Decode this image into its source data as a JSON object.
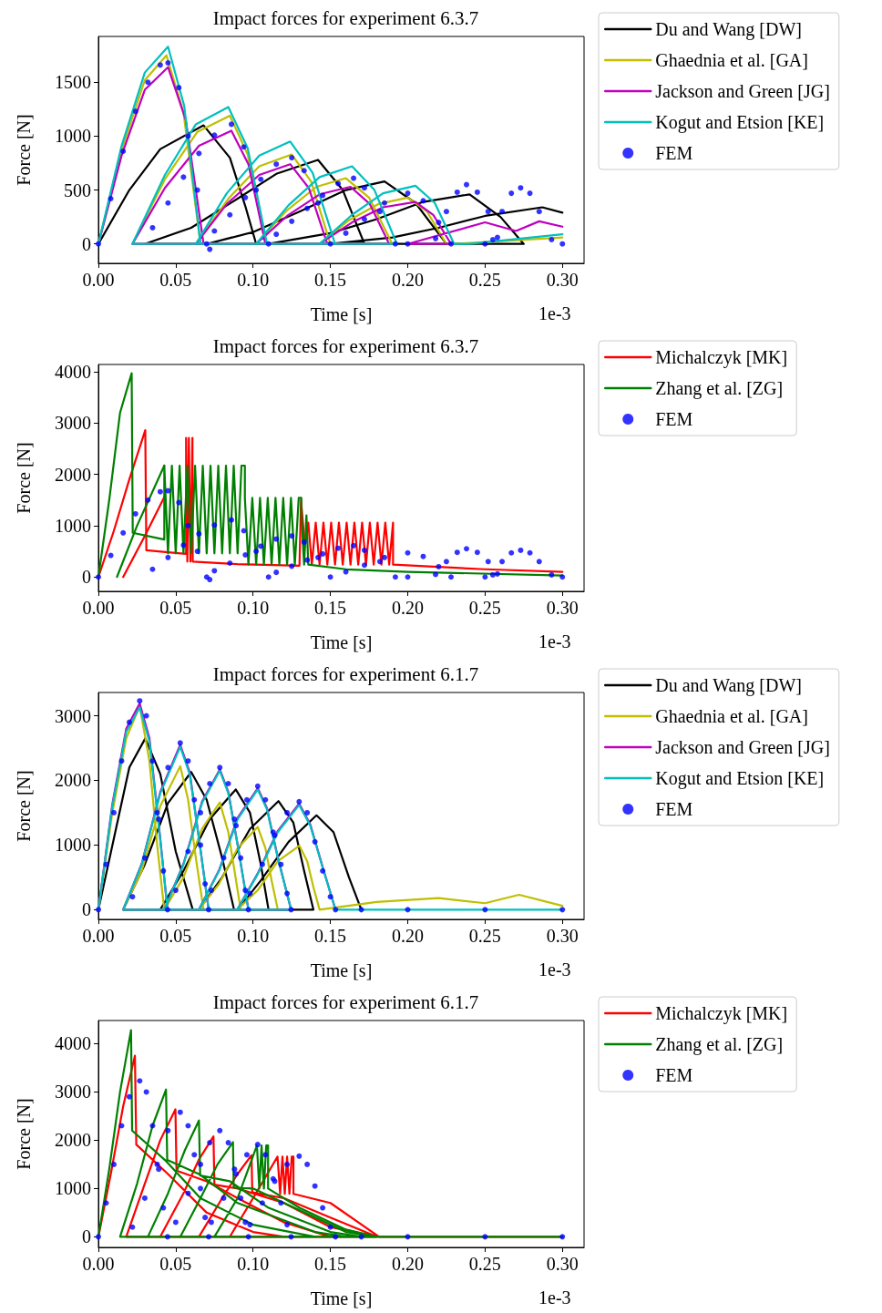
{
  "chart_data": [
    {
      "type": "line",
      "title": "Impact forces for experiment 6.3.7",
      "xlabel": "Time [s]",
      "ylabel": "Force [N]",
      "annotations": [
        "1e-3"
      ],
      "legend": "right",
      "xlim": [
        0,
        0.314
      ],
      "ylim": [
        -180,
        1925
      ],
      "xticks": [
        {
          "value": 0,
          "label": "0.00"
        },
        {
          "value": 0.05,
          "label": "0.05"
        },
        {
          "value": 0.1,
          "label": "0.10"
        },
        {
          "value": 0.15,
          "label": "0.15"
        },
        {
          "value": 0.2,
          "label": "0.20"
        },
        {
          "value": 0.25,
          "label": "0.25"
        },
        {
          "value": 0.3,
          "label": "0.30"
        }
      ],
      "yticks": [
        0,
        500,
        1000,
        1500
      ],
      "series": [
        {
          "name": "Du and Wang [DW]",
          "color": "#000000",
          "x": [
            0,
            0.02,
            0.04,
            0.068,
            0.085,
            0.095,
            0.102,
            0.03,
            0.06,
            0.09,
            0.115,
            0.142,
            0.158,
            0.172,
            0.07,
            0.1,
            0.13,
            0.16,
            0.185,
            0.205,
            0.225,
            0.11,
            0.15,
            0.18,
            0.21,
            0.24,
            0.26,
            0.275,
            0.15,
            0.19,
            0.22,
            0.25,
            0.287,
            0.3
          ],
          "values": [
            0,
            500,
            880,
            1100,
            800,
            350,
            0,
            0,
            150,
            420,
            650,
            780,
            500,
            0,
            0,
            110,
            300,
            500,
            580,
            380,
            0,
            0,
            100,
            230,
            390,
            460,
            250,
            0,
            0,
            60,
            150,
            260,
            340,
            290
          ]
        },
        {
          "name": "Ghaednia et al. [GA]",
          "color": "#bfbf00",
          "x": [
            0,
            0.015,
            0.03,
            0.044,
            0.055,
            0.066,
            0.022,
            0.043,
            0.064,
            0.085,
            0.0965,
            0.108,
            0.063,
            0.084,
            0.104,
            0.125,
            0.1375,
            0.15,
            0.102,
            0.121,
            0.141,
            0.16,
            0.175,
            0.19,
            0.143,
            0.162,
            0.181,
            0.2,
            0.2125,
            0.225,
            0.23,
            0.3
          ],
          "values": [
            0,
            870,
            1520,
            1750,
            1220,
            0,
            0,
            600,
            1040,
            1190,
            830,
            0,
            0,
            420,
            720,
            830,
            580,
            0,
            0,
            300,
            530,
            610,
            430,
            0,
            0,
            220,
            370,
            430,
            300,
            0,
            0,
            60
          ]
        },
        {
          "name": "Jackson and Green [JG]",
          "color": "#bf00bf",
          "x": [
            0,
            0.015,
            0.03,
            0.045,
            0.0565,
            0.068,
            0.022,
            0.043,
            0.065,
            0.086,
            0.097,
            0.108,
            0.063,
            0.083,
            0.104,
            0.124,
            0.136,
            0.148,
            0.102,
            0.122,
            0.143,
            0.163,
            0.1755,
            0.188,
            0.143,
            0.164,
            0.184,
            0.205,
            0.2165,
            0.228,
            0.2,
            0.25,
            0.27,
            0.285,
            0.3
          ],
          "values": [
            0,
            820,
            1430,
            1640,
            1150,
            0,
            0,
            520,
            910,
            1050,
            740,
            0,
            0,
            370,
            640,
            740,
            520,
            0,
            0,
            260,
            460,
            530,
            370,
            0,
            0,
            200,
            340,
            390,
            270,
            0,
            0,
            200,
            120,
            210,
            160
          ]
        },
        {
          "name": "Kogut and Etsion [KE]",
          "color": "#00bfbf",
          "x": [
            0,
            0.015,
            0.03,
            0.045,
            0.0555,
            0.066,
            0.022,
            0.043,
            0.063,
            0.084,
            0.0965,
            0.109,
            0.063,
            0.083,
            0.104,
            0.124,
            0.1385,
            0.153,
            0.102,
            0.123,
            0.143,
            0.164,
            0.1785,
            0.193,
            0.143,
            0.164,
            0.184,
            0.205,
            0.2175,
            0.23,
            0.24,
            0.3
          ],
          "values": [
            0,
            910,
            1590,
            1830,
            1280,
            0,
            0,
            640,
            1110,
            1270,
            890,
            0,
            0,
            470,
            820,
            950,
            660,
            0,
            0,
            360,
            620,
            720,
            500,
            0,
            0,
            270,
            470,
            540,
            380,
            0,
            0,
            90
          ]
        },
        {
          "name": "FEM",
          "color": "#0000ff",
          "type": "scatter",
          "marker": "circle",
          "x": [
            0,
            0.008,
            0.016,
            0.024,
            0.032,
            0.04,
            0.045,
            0.052,
            0.058,
            0.064,
            0.07,
            0.072,
            0.035,
            0.045,
            0.055,
            0.065,
            0.075,
            0.086,
            0.094,
            0.102,
            0.11,
            0.075,
            0.085,
            0.095,
            0.105,
            0.115,
            0.125,
            0.133,
            0.142,
            0.15,
            0.115,
            0.125,
            0.135,
            0.145,
            0.155,
            0.165,
            0.172,
            0.182,
            0.192,
            0.16,
            0.172,
            0.185,
            0.2,
            0.21,
            0.22,
            0.228,
            0.218,
            0.225,
            0.232,
            0.238,
            0.245,
            0.252,
            0.258,
            0.255,
            0.261,
            0.267,
            0.273,
            0.279,
            0.285,
            0.293,
            0.2,
            0.25,
            0.3
          ],
          "values": [
            0,
            420,
            860,
            1230,
            1500,
            1660,
            1680,
            1450,
            1000,
            500,
            0,
            -50,
            150,
            380,
            620,
            840,
            1010,
            1110,
            900,
            500,
            0,
            120,
            270,
            430,
            600,
            740,
            800,
            680,
            380,
            0,
            90,
            210,
            330,
            450,
            560,
            610,
            520,
            300,
            0,
            100,
            230,
            380,
            470,
            400,
            200,
            0,
            50,
            300,
            480,
            550,
            480,
            300,
            60,
            40,
            300,
            470,
            520,
            470,
            300,
            40,
            0,
            0,
            0
          ]
        }
      ]
    },
    {
      "type": "line",
      "title": "Impact forces for experiment 6.3.7",
      "xlabel": "Time [s]",
      "ylabel": "Force [N]",
      "annotations": [
        "1e-3"
      ],
      "legend": "right",
      "xlim": [
        0,
        0.314
      ],
      "ylim": [
        -280,
        4140
      ],
      "xticks": [
        {
          "value": 0,
          "label": "0.00"
        },
        {
          "value": 0.05,
          "label": "0.05"
        },
        {
          "value": 0.1,
          "label": "0.10"
        },
        {
          "value": 0.15,
          "label": "0.15"
        },
        {
          "value": 0.2,
          "label": "0.20"
        },
        {
          "value": 0.25,
          "label": "0.25"
        },
        {
          "value": 0.3,
          "label": "0.30"
        }
      ],
      "yticks": [
        0,
        1000,
        2000,
        3000,
        4000
      ],
      "series": [
        {
          "name": "Michalczyk [MK]",
          "color": "#ff0000",
          "x": [
            0,
            0.01,
            0.02,
            0.0303,
            0.031,
            0.045,
            0.0567,
            0.0567,
            0.0575,
            0.0585,
            0.0595,
            0.0608,
            0.061,
            0.09,
            0.13,
            0.131,
            0.1335,
            0.1357,
            0.138,
            0.1405,
            0.143,
            0.1455,
            0.148,
            0.1505,
            0.153,
            0.1555,
            0.158,
            0.1605,
            0.163,
            0.1655,
            0.168,
            0.1705,
            0.173,
            0.1755,
            0.178,
            0.1805,
            0.183,
            0.1855,
            0.188,
            0.1905,
            0.1905,
            0.25,
            0.3
          ],
          "values": [
            0,
            900,
            1900,
            2860,
            520,
            480,
            450,
            2710,
            300,
            2710,
            300,
            2710,
            300,
            250,
            220,
            1500,
            600,
            1060,
            240,
            1060,
            240,
            1060,
            240,
            1060,
            240,
            1060,
            240,
            1060,
            240,
            1060,
            240,
            1060,
            240,
            1060,
            240,
            1060,
            240,
            1060,
            240,
            1060,
            240,
            150,
            100
          ]
        },
        {
          "color": "#ff0000",
          "x": [
            0.016,
            0.03,
            0.043
          ],
          "values": [
            0,
            800,
            1580
          ]
        },
        {
          "name": "Zhang et al. [ZG]",
          "color": "#008000",
          "x": [
            0,
            0.007,
            0.014,
            0.0215,
            0.0222,
            0.0426,
            0.0426,
            0.045,
            0.0475,
            0.05,
            0.0525,
            0.055,
            0.0575,
            0.06,
            0.0625,
            0.065,
            0.0675,
            0.07,
            0.0725,
            0.075,
            0.0775,
            0.08,
            0.0825,
            0.085,
            0.0875,
            0.09,
            0.0925,
            0.0947,
            0.0947,
            0.097,
            0.0995,
            0.102,
            0.1045,
            0.107,
            0.1095,
            0.112,
            0.1145,
            0.117,
            0.1195,
            0.122,
            0.1245,
            0.127,
            0.1295,
            0.1312,
            0.1312,
            0.133,
            0.1345,
            0.1357,
            0.16,
            0.2,
            0.3
          ],
          "values": [
            0,
            1500,
            3200,
            3970,
            860,
            730,
            2170,
            460,
            2170,
            460,
            2170,
            460,
            2170,
            460,
            2170,
            460,
            2170,
            460,
            2170,
            460,
            2170,
            460,
            2170,
            460,
            2170,
            460,
            2170,
            2170,
            1540,
            240,
            1540,
            240,
            1540,
            240,
            1540,
            240,
            1540,
            240,
            1540,
            240,
            1540,
            240,
            1540,
            1540,
            1200,
            240,
            1200,
            240,
            150,
            100,
            30
          ]
        },
        {
          "color": "#008000",
          "x": [
            0.012,
            0.025,
            0.0426
          ],
          "values": [
            0,
            1000,
            2170
          ]
        },
        {
          "name": "FEM",
          "color": "#0000ff",
          "type": "scatter",
          "marker": "circle",
          "x": [
            0,
            0.008,
            0.016,
            0.024,
            0.032,
            0.04,
            0.045,
            0.052,
            0.058,
            0.064,
            0.07,
            0.072,
            0.035,
            0.045,
            0.055,
            0.065,
            0.075,
            0.086,
            0.094,
            0.102,
            0.11,
            0.075,
            0.085,
            0.095,
            0.105,
            0.115,
            0.125,
            0.133,
            0.142,
            0.15,
            0.115,
            0.125,
            0.135,
            0.145,
            0.155,
            0.165,
            0.172,
            0.182,
            0.192,
            0.16,
            0.172,
            0.185,
            0.2,
            0.21,
            0.22,
            0.228,
            0.218,
            0.225,
            0.232,
            0.238,
            0.245,
            0.252,
            0.258,
            0.255,
            0.261,
            0.267,
            0.273,
            0.279,
            0.285,
            0.293,
            0.2,
            0.25,
            0.3
          ],
          "values": [
            0,
            420,
            860,
            1230,
            1500,
            1660,
            1680,
            1450,
            1000,
            500,
            0,
            -50,
            150,
            380,
            620,
            840,
            1010,
            1110,
            900,
            500,
            0,
            120,
            270,
            430,
            600,
            740,
            800,
            680,
            380,
            0,
            90,
            210,
            330,
            450,
            560,
            610,
            520,
            300,
            0,
            100,
            230,
            380,
            470,
            400,
            200,
            0,
            50,
            300,
            480,
            550,
            480,
            300,
            60,
            40,
            300,
            470,
            520,
            470,
            300,
            40,
            0,
            0,
            0
          ]
        }
      ]
    },
    {
      "type": "line",
      "title": "Impact forces for experiment 6.1.7",
      "xlabel": "Time [s]",
      "ylabel": "Force [N]",
      "annotations": [
        "1e-3"
      ],
      "legend": "right",
      "xlim": [
        0,
        0.314
      ],
      "ylim": [
        -150,
        3360
      ],
      "xticks": [
        {
          "value": 0,
          "label": "0.00"
        },
        {
          "value": 0.05,
          "label": "0.05"
        },
        {
          "value": 0.1,
          "label": "0.10"
        },
        {
          "value": 0.15,
          "label": "0.15"
        },
        {
          "value": 0.2,
          "label": "0.20"
        },
        {
          "value": 0.25,
          "label": "0.25"
        },
        {
          "value": 0.3,
          "label": "0.30"
        }
      ],
      "yticks": [
        0,
        1000,
        2000,
        3000
      ],
      "series": [
        {
          "name": "Du and Wang [DW]",
          "color": "#000000",
          "x": [
            0,
            0.01,
            0.02,
            0.0303,
            0.04,
            0.05,
            0.061,
            0.016,
            0.03,
            0.045,
            0.06,
            0.07,
            0.08,
            0.0877,
            0.04,
            0.055,
            0.072,
            0.0888,
            0.098,
            0.105,
            0.11,
            0.065,
            0.08,
            0.098,
            0.1164,
            0.126,
            0.133,
            0.139,
            0.09,
            0.105,
            0.123,
            0.141,
            0.152,
            0.162,
            0.17
          ],
          "values": [
            0,
            1100,
            2200,
            2650,
            2100,
            900,
            0,
            0,
            700,
            1650,
            2130,
            1700,
            800,
            0,
            0,
            600,
            1400,
            1860,
            1500,
            700,
            0,
            0,
            500,
            1250,
            1680,
            1350,
            600,
            0,
            0,
            450,
            1050,
            1460,
            1200,
            500,
            0
          ]
        },
        {
          "name": "Ghaednia et al. [GA]",
          "color": "#bfbf00",
          "x": [
            0,
            0.009,
            0.018,
            0.0267,
            0.033,
            0.038,
            0.0426,
            0.016,
            0.028,
            0.04,
            0.0529,
            0.058,
            0.063,
            0.068,
            0.0426,
            0.055,
            0.067,
            0.0785,
            0.084,
            0.088,
            0.092,
            0.065,
            0.078,
            0.09,
            0.103,
            0.108,
            0.112,
            0.116,
            0.0898,
            0.103,
            0.116,
            0.13,
            0.135,
            0.139,
            0.143,
            0.18,
            0.22,
            0.25,
            0.272,
            0.3
          ],
          "values": [
            0,
            1500,
            2650,
            3150,
            2300,
            1000,
            0,
            0,
            600,
            1600,
            2220,
            1700,
            800,
            0,
            0,
            500,
            1250,
            1660,
            1200,
            600,
            0,
            0,
            400,
            950,
            1280,
            950,
            450,
            0,
            0,
            300,
            750,
            990,
            750,
            350,
            0,
            120,
            180,
            100,
            230,
            60
          ]
        },
        {
          "name": "Jackson and Green [JG]",
          "color": "#bf00bf",
          "x": [
            0,
            0.009,
            0.018,
            0.0267,
            0.033,
            0.039,
            0.0447,
            0.016,
            0.028,
            0.04,
            0.0529,
            0.059,
            0.065,
            0.0713,
            0.0426,
            0.055,
            0.067,
            0.0785,
            0.084,
            0.09,
            0.097,
            0.065,
            0.078,
            0.09,
            0.103,
            0.109,
            0.116,
            0.1246,
            0.0898,
            0.103,
            0.116,
            0.1298,
            0.137,
            0.145,
            0.1533
          ],
          "values": [
            0,
            1630,
            2800,
            3190,
            2650,
            1330,
            0,
            0,
            710,
            1820,
            2550,
            2130,
            1110,
            0,
            0,
            710,
            1670,
            2170,
            1820,
            1010,
            0,
            0,
            610,
            1420,
            1880,
            1570,
            810,
            0,
            0,
            560,
            1220,
            1640,
            1320,
            660,
            0
          ]
        },
        {
          "name": "Kogut and Etsion [KE]",
          "color": "#00bfbf",
          "x": [
            0,
            0.009,
            0.018,
            0.0267,
            0.033,
            0.039,
            0.0447,
            0.016,
            0.028,
            0.04,
            0.0529,
            0.059,
            0.065,
            0.0713,
            0.0426,
            0.055,
            0.067,
            0.0785,
            0.084,
            0.09,
            0.097,
            0.065,
            0.078,
            0.09,
            0.103,
            0.109,
            0.116,
            0.1246,
            0.0898,
            0.103,
            0.116,
            0.1298,
            0.137,
            0.145,
            0.1533,
            0.3
          ],
          "values": [
            0,
            1600,
            2750,
            3130,
            2600,
            1300,
            0,
            0,
            700,
            1800,
            2520,
            2100,
            1100,
            0,
            0,
            700,
            1650,
            2150,
            1800,
            1000,
            0,
            0,
            600,
            1400,
            1860,
            1550,
            800,
            0,
            0,
            550,
            1200,
            1620,
            1300,
            650,
            0,
            0
          ]
        },
        {
          "name": "FEM",
          "color": "#0000ff",
          "type": "scatter",
          "marker": "circle",
          "x": [
            0,
            0.005,
            0.01,
            0.015,
            0.02,
            0.0267,
            0.031,
            0.035,
            0.039,
            0.042,
            0.0447,
            0.022,
            0.03,
            0.038,
            0.045,
            0.0529,
            0.058,
            0.062,
            0.066,
            0.069,
            0.0713,
            0.05,
            0.058,
            0.066,
            0.072,
            0.0785,
            0.084,
            0.088,
            0.092,
            0.095,
            0.097,
            0.073,
            0.081,
            0.089,
            0.096,
            0.103,
            0.108,
            0.113,
            0.118,
            0.122,
            0.1246,
            0.098,
            0.106,
            0.114,
            0.122,
            0.1298,
            0.135,
            0.14,
            0.145,
            0.15,
            0.1533,
            0.17,
            0.2,
            0.25,
            0.3
          ],
          "values": [
            0,
            700,
            1500,
            2300,
            2900,
            3230,
            3000,
            2300,
            1400,
            600,
            0,
            200,
            800,
            1500,
            2200,
            2580,
            2300,
            1700,
            1000,
            400,
            0,
            300,
            900,
            1500,
            1950,
            2200,
            1950,
            1400,
            800,
            300,
            0,
            300,
            800,
            1300,
            1700,
            1910,
            1700,
            1200,
            700,
            250,
            0,
            250,
            700,
            1150,
            1500,
            1670,
            1500,
            1050,
            600,
            200,
            0,
            0,
            0,
            0,
            0
          ]
        }
      ]
    },
    {
      "type": "line",
      "title": "Impact forces for experiment 6.1.7",
      "xlabel": "Time [s]",
      "ylabel": "Force [N]",
      "annotations": [
        "1e-3"
      ],
      "legend": "right",
      "xlim": [
        0,
        0.314
      ],
      "ylim": [
        -220,
        4480
      ],
      "xticks": [
        {
          "value": 0,
          "label": "0.00"
        },
        {
          "value": 0.05,
          "label": "0.05"
        },
        {
          "value": 0.1,
          "label": "0.10"
        },
        {
          "value": 0.15,
          "label": "0.15"
        },
        {
          "value": 0.2,
          "label": "0.20"
        },
        {
          "value": 0.25,
          "label": "0.25"
        },
        {
          "value": 0.3,
          "label": "0.30"
        }
      ],
      "yticks": [
        0,
        1000,
        2000,
        3000,
        4000
      ],
      "series": [
        {
          "name": "Michalczyk [MK]",
          "color": "#ff0000",
          "x": [
            0,
            0.008,
            0.016,
            0.0236,
            0.0245,
            0.045,
            0.07,
            0.1,
            0.12,
            0.018,
            0.03,
            0.04,
            0.0498,
            0.0505,
            0.07,
            0.09,
            0.12,
            0.15,
            0.04,
            0.055,
            0.065,
            0.0744,
            0.075,
            0.09,
            0.12,
            0.15,
            0.18,
            0.065,
            0.08,
            0.09,
            0.099,
            0.0995,
            0.12,
            0.15,
            0.18,
            0.085,
            0.1,
            0.1158,
            0.1175,
            0.119,
            0.1205,
            0.122,
            0.1235,
            0.125,
            0.1261,
            0.1261,
            0.15,
            0.1815,
            0.3
          ],
          "values": [
            0,
            1300,
            2700,
            3750,
            1910,
            1300,
            500,
            100,
            0,
            0,
            1100,
            2000,
            2640,
            1370,
            1150,
            800,
            300,
            0,
            0,
            900,
            1600,
            2080,
            1080,
            1000,
            700,
            200,
            0,
            0,
            800,
            1300,
            1690,
            920,
            800,
            400,
            0,
            0,
            800,
            1660,
            890,
            1660,
            890,
            1660,
            890,
            1660,
            1660,
            890,
            700,
            0,
            0
          ]
        },
        {
          "name": "Zhang et al. [ZG]",
          "color": "#008000",
          "x": [
            0,
            0.007,
            0.014,
            0.0211,
            0.0218,
            0.043,
            0.066,
            0.1,
            0.14,
            0.014,
            0.025,
            0.035,
            0.0437,
            0.0445,
            0.065,
            0.09,
            0.14,
            0.16,
            0.032,
            0.045,
            0.056,
            0.065,
            0.0658,
            0.085,
            0.11,
            0.15,
            0.17,
            0.053,
            0.066,
            0.077,
            0.087,
            0.0875,
            0.1,
            0.12,
            0.16,
            0.18,
            0.075,
            0.09,
            0.1025,
            0.104,
            0.1055,
            0.107,
            0.1085,
            0.1097,
            0.1097,
            0.13,
            0.16,
            0.18,
            0.3
          ],
          "values": [
            0,
            1400,
            3000,
            4280,
            2200,
            1590,
            800,
            250,
            0,
            0,
            1100,
            2300,
            3050,
            1590,
            1300,
            700,
            100,
            0,
            0,
            900,
            1800,
            2410,
            1270,
            1150,
            600,
            100,
            0,
            0,
            800,
            1500,
            1960,
            1020,
            1000,
            700,
            100,
            0,
            0,
            800,
            1890,
            1000,
            1890,
            1000,
            1890,
            1890,
            1000,
            600,
            150,
            0,
            0
          ]
        },
        {
          "name": "FEM",
          "color": "#0000ff",
          "type": "scatter",
          "marker": "circle",
          "x": [
            0,
            0.005,
            0.01,
            0.015,
            0.02,
            0.0267,
            0.031,
            0.035,
            0.039,
            0.042,
            0.0447,
            0.022,
            0.03,
            0.038,
            0.045,
            0.0529,
            0.058,
            0.062,
            0.066,
            0.069,
            0.0713,
            0.05,
            0.058,
            0.066,
            0.072,
            0.0785,
            0.084,
            0.088,
            0.092,
            0.095,
            0.097,
            0.073,
            0.081,
            0.089,
            0.096,
            0.103,
            0.108,
            0.113,
            0.118,
            0.122,
            0.1246,
            0.098,
            0.106,
            0.114,
            0.122,
            0.1298,
            0.135,
            0.14,
            0.145,
            0.15,
            0.1533,
            0.17,
            0.2,
            0.25,
            0.3
          ],
          "values": [
            0,
            700,
            1500,
            2300,
            2900,
            3230,
            3000,
            2300,
            1400,
            600,
            0,
            200,
            800,
            1500,
            2200,
            2580,
            2300,
            1700,
            1000,
            400,
            0,
            300,
            900,
            1500,
            1950,
            2200,
            1950,
            1400,
            800,
            300,
            0,
            300,
            800,
            1300,
            1700,
            1910,
            1700,
            1200,
            700,
            250,
            0,
            250,
            700,
            1150,
            1500,
            1670,
            1500,
            1050,
            600,
            200,
            0,
            0,
            0,
            0,
            0
          ]
        }
      ]
    }
  ]
}
